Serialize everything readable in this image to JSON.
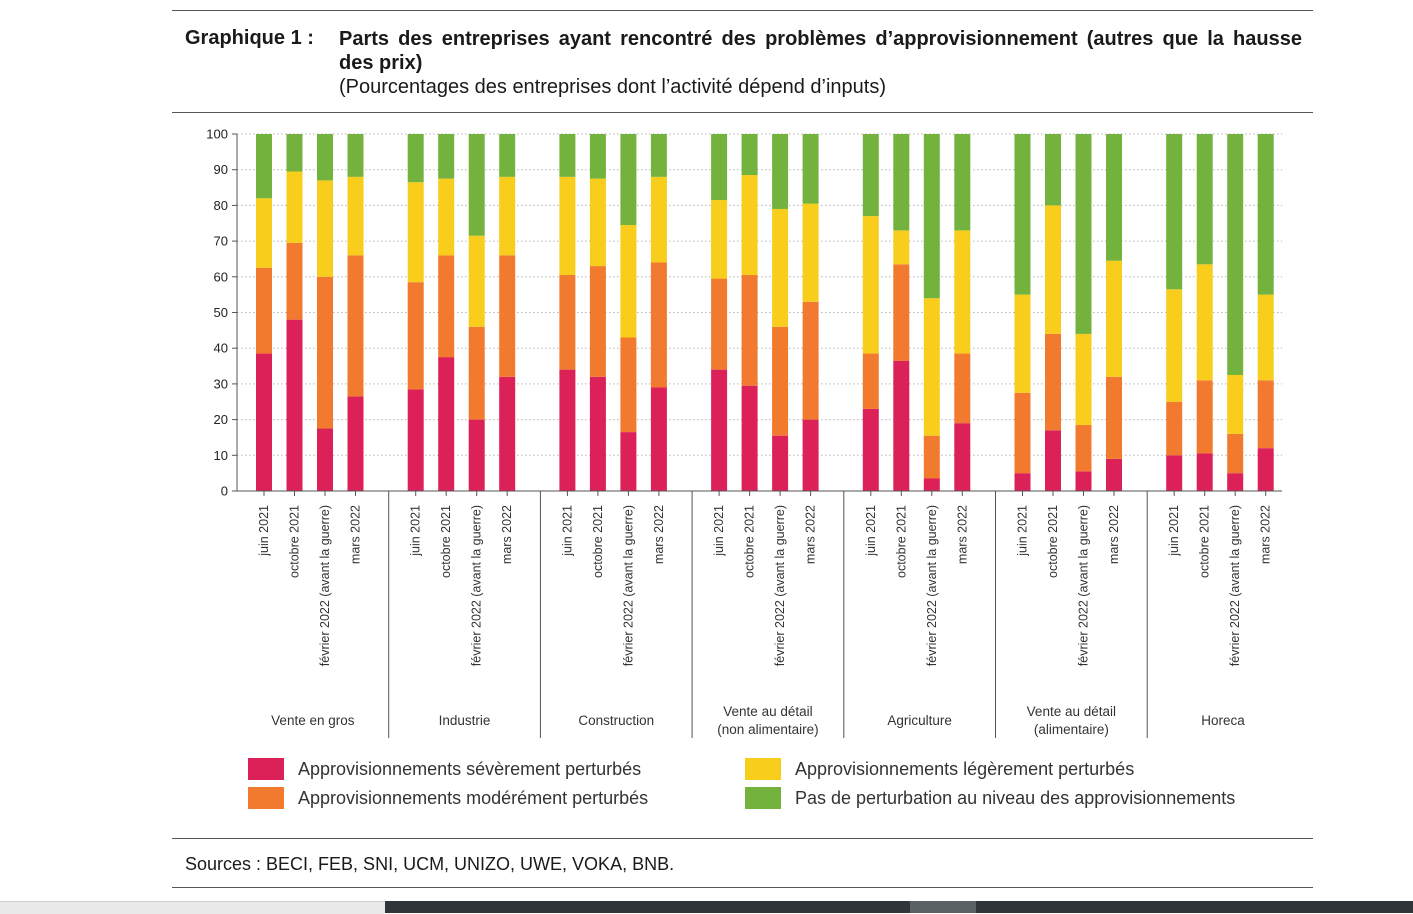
{
  "title": {
    "label": "Graphique 1 :",
    "main": "Parts des entreprises ayant rencontré des problèmes d’approvisionnement (autres que la hausse des prix)",
    "subtitle": "(Pourcentages des entreprises dont l’activité dépend d’inputs)"
  },
  "sources": "Sources : BECI, FEB, SNI, UCM, UNIZO, UWE, VOKA, BNB.",
  "colors": {
    "severe": "#dc2159",
    "modere": "#f17a2f",
    "leger": "#f8cd1b",
    "aucun": "#73b33d",
    "grid": "#b5b5b5",
    "axis": "#555555"
  },
  "chart_data": {
    "type": "bar",
    "stacked": true,
    "ylim": [
      0,
      100
    ],
    "yticks": [
      0,
      10,
      20,
      30,
      40,
      50,
      60,
      70,
      80,
      90,
      100
    ],
    "grid": true,
    "legend_position": "bottom",
    "periods": [
      "juin 2021",
      "octobre 2021",
      "février 2022 (avant la guerre)",
      "mars 2022"
    ],
    "groups": [
      {
        "lines": [
          "Vente en gros"
        ],
        "stacks": [
          [
            38.5,
            24,
            19.5,
            18
          ],
          [
            48,
            21.5,
            20,
            10.5
          ],
          [
            17.5,
            42.5,
            27,
            13
          ],
          [
            26.5,
            39.5,
            22,
            12
          ]
        ]
      },
      {
        "lines": [
          "Industrie"
        ],
        "stacks": [
          [
            28.5,
            30,
            28,
            13.5
          ],
          [
            37.5,
            28.5,
            21.5,
            12.5
          ],
          [
            20,
            26,
            25.5,
            28.5
          ],
          [
            32,
            34,
            22,
            12
          ]
        ]
      },
      {
        "lines": [
          "Construction"
        ],
        "stacks": [
          [
            34,
            26.5,
            27.5,
            12
          ],
          [
            32,
            31,
            24.5,
            12.5
          ],
          [
            16.5,
            26.5,
            31.5,
            25.5
          ],
          [
            29,
            35,
            24,
            12
          ]
        ]
      },
      {
        "lines": [
          "Vente au détail",
          "(non alimentaire)"
        ],
        "stacks": [
          [
            34,
            25.5,
            22,
            18.5
          ],
          [
            29.5,
            31,
            28,
            11.5
          ],
          [
            15.5,
            30.5,
            33,
            21
          ],
          [
            20,
            33,
            27.5,
            19.5
          ]
        ]
      },
      {
        "lines": [
          "Agriculture"
        ],
        "stacks": [
          [
            23,
            15.5,
            38.5,
            23
          ],
          [
            36.5,
            27,
            9.5,
            27
          ],
          [
            3.5,
            12,
            38.5,
            46
          ],
          [
            19,
            19.5,
            34.5,
            27
          ]
        ]
      },
      {
        "lines": [
          "Vente au détail",
          "(alimentaire)"
        ],
        "stacks": [
          [
            5,
            22.5,
            27.5,
            45
          ],
          [
            17,
            27,
            36,
            20
          ],
          [
            5.5,
            13,
            25.5,
            56
          ],
          [
            9,
            23,
            32.5,
            35.5
          ]
        ]
      },
      {
        "lines": [
          "Horeca"
        ],
        "stacks": [
          [
            10,
            15,
            31.5,
            43.5
          ],
          [
            10.5,
            20.5,
            32.5,
            36.5
          ],
          [
            5,
            11,
            16.5,
            67.5
          ],
          [
            12,
            19,
            24,
            45
          ]
        ]
      }
    ],
    "series": [
      {
        "key": "severe",
        "name": "Approvisionnements sévèrement perturbés"
      },
      {
        "key": "modere",
        "name": "Approvisionnements modérément perturbés"
      },
      {
        "key": "leger",
        "name": "Approvisionnements légèrement perturbés"
      },
      {
        "key": "aucun",
        "name": "Pas de perturbation au niveau des approvisionnements"
      }
    ]
  }
}
